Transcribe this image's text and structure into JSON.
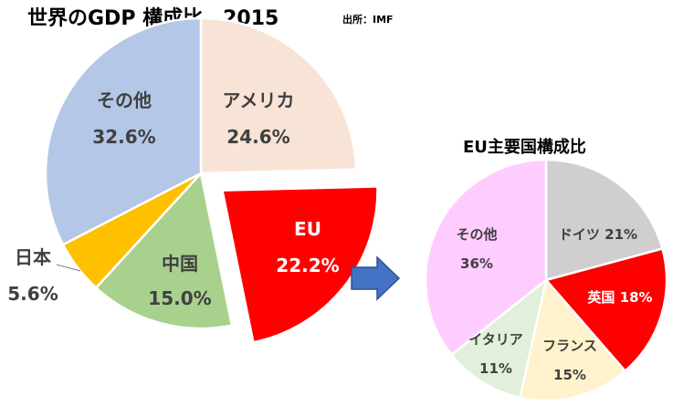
{
  "chart_data": [
    {
      "type": "pie",
      "title": "世界のGDP 構成比　2015",
      "source": "出所：IMF",
      "slices": [
        {
          "label": "アメリカ",
          "value_label": "24.6%",
          "value": 24.6,
          "color": "#f8e4d6",
          "exploded": false
        },
        {
          "label": "EU",
          "value_label": "22.2%",
          "value": 22.2,
          "color": "#ff0000",
          "exploded": true
        },
        {
          "label": "中国",
          "value_label": "15.0%",
          "value": 15.0,
          "color": "#a9d18e",
          "exploded": false
        },
        {
          "label": "日本",
          "value_label": "5.6%",
          "value": 5.6,
          "color": "#ffc000",
          "exploded": false
        },
        {
          "label": "その他",
          "value_label": "32.6%",
          "value": 32.6,
          "color": "#b4c7e7",
          "exploded": false
        }
      ]
    },
    {
      "type": "pie",
      "title": "EU主要国構成比",
      "slices": [
        {
          "label": "ドイツ",
          "value_label": "21%",
          "value": 21,
          "color": "#d0cece"
        },
        {
          "label": "英国",
          "value_label": "18%",
          "value": 18,
          "color": "#ff0000"
        },
        {
          "label": "フランス",
          "value_label": "15%",
          "value": 15,
          "color": "#fff2cc"
        },
        {
          "label": "イタリア",
          "value_label": "11%",
          "value": 11,
          "color": "#e2efda"
        },
        {
          "label": "その他",
          "value_label": "36%",
          "value": 36,
          "color": "#ffccff"
        }
      ]
    }
  ],
  "arrow": {
    "color": "#4472c4",
    "icon": "right-arrow-icon"
  }
}
